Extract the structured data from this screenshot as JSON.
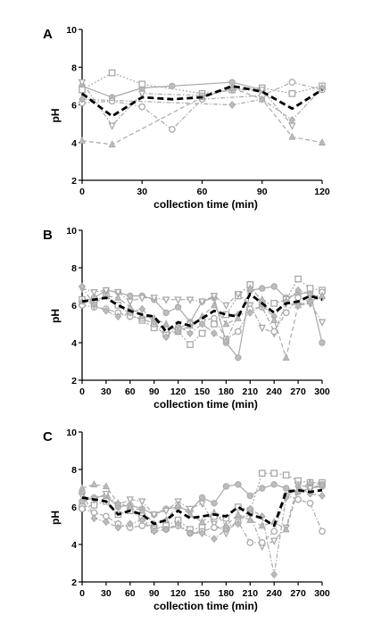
{
  "chart_data": [
    {
      "panel": "A",
      "type": "line",
      "xlabel": "collection time (min)",
      "ylabel": "pH",
      "xlim": [
        0,
        120
      ],
      "ylim": [
        2,
        10
      ],
      "xticks": [
        0,
        30,
        60,
        90,
        120
      ],
      "yticks": [
        2,
        4,
        6,
        8,
        10
      ],
      "mean": {
        "x": [
          0,
          15,
          30,
          45,
          60,
          75,
          90,
          105,
          120
        ],
        "values": [
          6.6,
          5.4,
          6.4,
          6.3,
          6.4,
          7.0,
          6.7,
          5.8,
          6.8
        ]
      },
      "series": [
        {
          "marker": "circle",
          "dash": "solid",
          "x": [
            0,
            15,
            30,
            45,
            75,
            90
          ],
          "values": [
            7.0,
            6.4,
            6.9,
            7.0,
            7.2,
            6.8
          ]
        },
        {
          "marker": "square",
          "dash": "dot",
          "x": [
            0,
            15,
            30,
            60,
            75,
            90,
            105,
            120
          ],
          "values": [
            6.8,
            7.7,
            7.1,
            6.6,
            6.8,
            6.9,
            6.6,
            7.0
          ]
        },
        {
          "marker": "triangle-down",
          "dash": "dashdot",
          "x": [
            0,
            15,
            30,
            60,
            75,
            90,
            105
          ],
          "values": [
            7.2,
            4.9,
            6.6,
            6.5,
            6.8,
            6.8,
            4.9
          ]
        },
        {
          "marker": "circle-open",
          "dash": "dashdot",
          "x": [
            0,
            15,
            30,
            45,
            60,
            90,
            105,
            120
          ],
          "values": [
            6.1,
            6.2,
            5.9,
            4.7,
            6.3,
            6.5,
            7.2,
            6.8
          ]
        },
        {
          "marker": "diamond",
          "dash": "dashdot",
          "x": [
            0,
            75,
            90,
            105,
            120
          ],
          "values": [
            6.3,
            6.0,
            6.3,
            5.2,
            6.9
          ]
        },
        {
          "marker": "triangle",
          "dash": "dash",
          "x": [
            0,
            15,
            60,
            75,
            90,
            105,
            120
          ],
          "values": [
            4.1,
            3.9,
            6.4,
            6.9,
            6.3,
            4.3,
            4.0
          ]
        }
      ]
    },
    {
      "panel": "B",
      "type": "line",
      "xlabel": "collection time (min)",
      "ylabel": "pH",
      "xlim": [
        0,
        300
      ],
      "ylim": [
        2,
        10
      ],
      "xticks": [
        0,
        30,
        60,
        90,
        120,
        150,
        180,
        210,
        240,
        270,
        300
      ],
      "yticks": [
        2,
        4,
        6,
        8,
        10
      ],
      "mean": {
        "x": [
          0,
          15,
          30,
          45,
          60,
          75,
          90,
          105,
          120,
          135,
          150,
          165,
          180,
          195,
          210,
          225,
          240,
          255,
          270,
          285,
          300
        ],
        "values": [
          6.2,
          6.3,
          6.4,
          6.0,
          5.7,
          5.5,
          5.4,
          4.6,
          5.1,
          4.9,
          5.3,
          5.7,
          5.5,
          5.4,
          6.6,
          6.1,
          5.6,
          6.1,
          6.2,
          6.5,
          6.3
        ]
      },
      "series": [
        {
          "marker": "circle",
          "dash": "solid",
          "x": [
            0,
            15,
            30,
            45,
            60,
            75,
            90,
            105,
            120,
            135,
            150,
            165,
            180,
            195,
            210,
            225,
            240,
            255,
            270,
            285,
            300
          ],
          "values": [
            6.2,
            6.4,
            6.8,
            6.7,
            6.5,
            6.5,
            6.3,
            5.6,
            5.9,
            5.1,
            6.2,
            6.4,
            4.0,
            3.2,
            6.8,
            6.9,
            7.0,
            6.4,
            6.6,
            6.7,
            4.0
          ]
        },
        {
          "marker": "square",
          "dash": "dot",
          "x": [
            0,
            15,
            30,
            45,
            60,
            75,
            90,
            105,
            120,
            135,
            150,
            165,
            180,
            195,
            210,
            225,
            240,
            255,
            270,
            285,
            300
          ],
          "values": [
            6.3,
            6.2,
            6.5,
            6.0,
            5.5,
            5.2,
            4.8,
            4.5,
            4.6,
            3.9,
            4.5,
            5.0,
            5.5,
            6.5,
            7.1,
            6.1,
            6.1,
            6.3,
            7.4,
            6.9,
            6.8
          ]
        },
        {
          "marker": "triangle-down",
          "dash": "dashdot",
          "x": [
            0,
            15,
            30,
            45,
            60,
            75,
            90,
            105,
            120,
            135,
            150,
            165,
            180,
            195,
            210,
            225,
            240,
            255,
            270,
            285,
            300
          ],
          "values": [
            6.9,
            6.7,
            6.8,
            6.7,
            6.2,
            6.4,
            6.4,
            6.3,
            6.3,
            6.3,
            6.2,
            6.5,
            6.0,
            6.6,
            6.0,
            4.8,
            4.5,
            6.1,
            6.0,
            6.1,
            5.1
          ]
        },
        {
          "marker": "circle-open",
          "dash": "dashdot",
          "x": [
            0,
            15,
            30,
            45,
            60,
            75,
            90,
            105,
            120,
            135,
            150,
            165,
            180,
            195,
            210,
            225,
            240,
            255,
            270,
            285,
            300
          ],
          "values": [
            6.0,
            5.9,
            5.8,
            5.6,
            5.4,
            5.3,
            5.0,
            4.7,
            4.8,
            5.0,
            5.2,
            5.3,
            4.2,
            4.6,
            5.8,
            5.9,
            4.6,
            5.6,
            6.4,
            6.2,
            6.7
          ]
        },
        {
          "marker": "diamond",
          "dash": "dashdot",
          "x": [
            0,
            15,
            30,
            45,
            60,
            75,
            90,
            105,
            120,
            135,
            150,
            165,
            180,
            195,
            210,
            225,
            240,
            255,
            270,
            285,
            300
          ],
          "values": [
            7.0,
            6.0,
            5.7,
            5.4,
            5.6,
            5.8,
            5.1,
            4.3,
            4.9,
            4.5,
            5.0,
            4.5,
            4.1,
            5.5,
            5.6,
            6.0,
            5.4,
            6.2,
            6.8,
            6.6,
            6.4
          ]
        },
        {
          "marker": "triangle",
          "dash": "dash",
          "x": [
            0,
            15,
            30,
            45,
            60,
            75,
            90,
            105,
            120,
            135,
            150,
            165,
            180,
            195,
            210,
            225,
            240,
            255,
            270,
            285,
            300
          ],
          "values": [
            6.2,
            6.1,
            6.5,
            6.4,
            5.9,
            5.4,
            5.3,
            5.0,
            4.6,
            4.9,
            5.4,
            6.0,
            5.0,
            5.3,
            6.9,
            6.3,
            5.2,
            3.2,
            6.0,
            6.2,
            6.5
          ]
        }
      ]
    },
    {
      "panel": "C",
      "type": "line",
      "xlabel": "collection time (min)",
      "ylabel": "pH",
      "xlim": [
        0,
        300
      ],
      "ylim": [
        2,
        10
      ],
      "xticks": [
        0,
        30,
        60,
        90,
        120,
        150,
        180,
        210,
        240,
        270,
        300
      ],
      "yticks": [
        2,
        4,
        6,
        8,
        10
      ],
      "mean": {
        "x": [
          0,
          15,
          30,
          45,
          60,
          75,
          90,
          105,
          120,
          135,
          150,
          165,
          180,
          195,
          210,
          225,
          240,
          255,
          270,
          285,
          300
        ],
        "values": [
          6.5,
          6.4,
          6.3,
          5.6,
          5.8,
          5.6,
          5.1,
          5.3,
          5.8,
          5.4,
          5.5,
          5.6,
          5.5,
          6.0,
          5.6,
          5.4,
          5.0,
          6.8,
          6.9,
          6.8,
          6.9
        ]
      },
      "series": [
        {
          "marker": "circle",
          "dash": "solid",
          "x": [
            0,
            15,
            30,
            45,
            60,
            75,
            90,
            105,
            120,
            135,
            150,
            165,
            180,
            195,
            210,
            225,
            240,
            255,
            270,
            285,
            300
          ],
          "values": [
            6.3,
            6.5,
            6.6,
            6.0,
            6.1,
            5.9,
            5.6,
            5.9,
            6.0,
            5.8,
            6.5,
            6.2,
            7.1,
            7.2,
            6.6,
            7.0,
            7.2,
            7.0,
            6.8,
            7.0,
            7.1
          ]
        },
        {
          "marker": "square",
          "dash": "dot",
          "x": [
            0,
            15,
            30,
            45,
            60,
            75,
            90,
            105,
            120,
            135,
            150,
            165,
            180,
            195,
            210,
            225,
            240,
            255,
            270,
            285,
            300
          ],
          "values": [
            6.0,
            6.1,
            6.3,
            5.6,
            5.8,
            5.4,
            4.8,
            5.0,
            5.3,
            4.8,
            4.9,
            5.5,
            5.4,
            6.0,
            5.8,
            7.8,
            7.8,
            7.7,
            7.4,
            7.3,
            7.3
          ]
        },
        {
          "marker": "triangle-down",
          "dash": "dashdot",
          "x": [
            0,
            15,
            30,
            45,
            60,
            75,
            90,
            105,
            120,
            135,
            150,
            165,
            180,
            195,
            210,
            225,
            240,
            255,
            270,
            285,
            300
          ],
          "values": [
            6.6,
            6.4,
            6.7,
            6.1,
            6.4,
            6.3,
            5.6,
            5.8,
            6.3,
            5.9,
            6.2,
            5.1,
            4.6,
            5.3,
            5.6,
            3.9,
            4.2,
            4.9,
            7.2,
            7.0,
            7.2
          ]
        },
        {
          "marker": "circle-open",
          "dash": "dashdot",
          "x": [
            0,
            15,
            30,
            45,
            60,
            75,
            90,
            105,
            120,
            135,
            150,
            165,
            180,
            195,
            210,
            225,
            240,
            255,
            270,
            285,
            300
          ],
          "values": [
            5.9,
            5.7,
            5.5,
            5.1,
            4.9,
            5.0,
            5.0,
            4.8,
            5.0,
            4.6,
            4.7,
            4.9,
            4.9,
            5.2,
            4.1,
            4.1,
            4.7,
            6.6,
            6.4,
            6.2,
            4.7
          ]
        },
        {
          "marker": "diamond",
          "dash": "dashdot",
          "x": [
            0,
            15,
            30,
            45,
            60,
            75,
            90,
            105,
            120,
            135,
            150,
            165,
            180,
            195,
            210,
            225,
            240,
            255,
            270,
            285,
            300
          ],
          "values": [
            6.8,
            5.4,
            5.2,
            4.9,
            5.1,
            5.3,
            4.7,
            4.8,
            5.1,
            4.6,
            4.6,
            4.3,
            4.8,
            5.1,
            5.9,
            5.5,
            2.4,
            6.5,
            7.1,
            6.7,
            6.6
          ]
        },
        {
          "marker": "triangle",
          "dash": "dash",
          "x": [
            0,
            15,
            30,
            45,
            60,
            75,
            90,
            105,
            120,
            135,
            150,
            165,
            180,
            195,
            210,
            225,
            240,
            255,
            270,
            285,
            300
          ],
          "values": [
            7.0,
            7.2,
            7.1,
            6.2,
            6.0,
            5.8,
            5.1,
            5.3,
            6.1,
            5.6,
            5.2,
            5.7,
            5.0,
            5.6,
            5.3,
            5.0,
            5.2,
            4.8,
            6.9,
            7.3,
            7.2
          ]
        }
      ]
    }
  ]
}
